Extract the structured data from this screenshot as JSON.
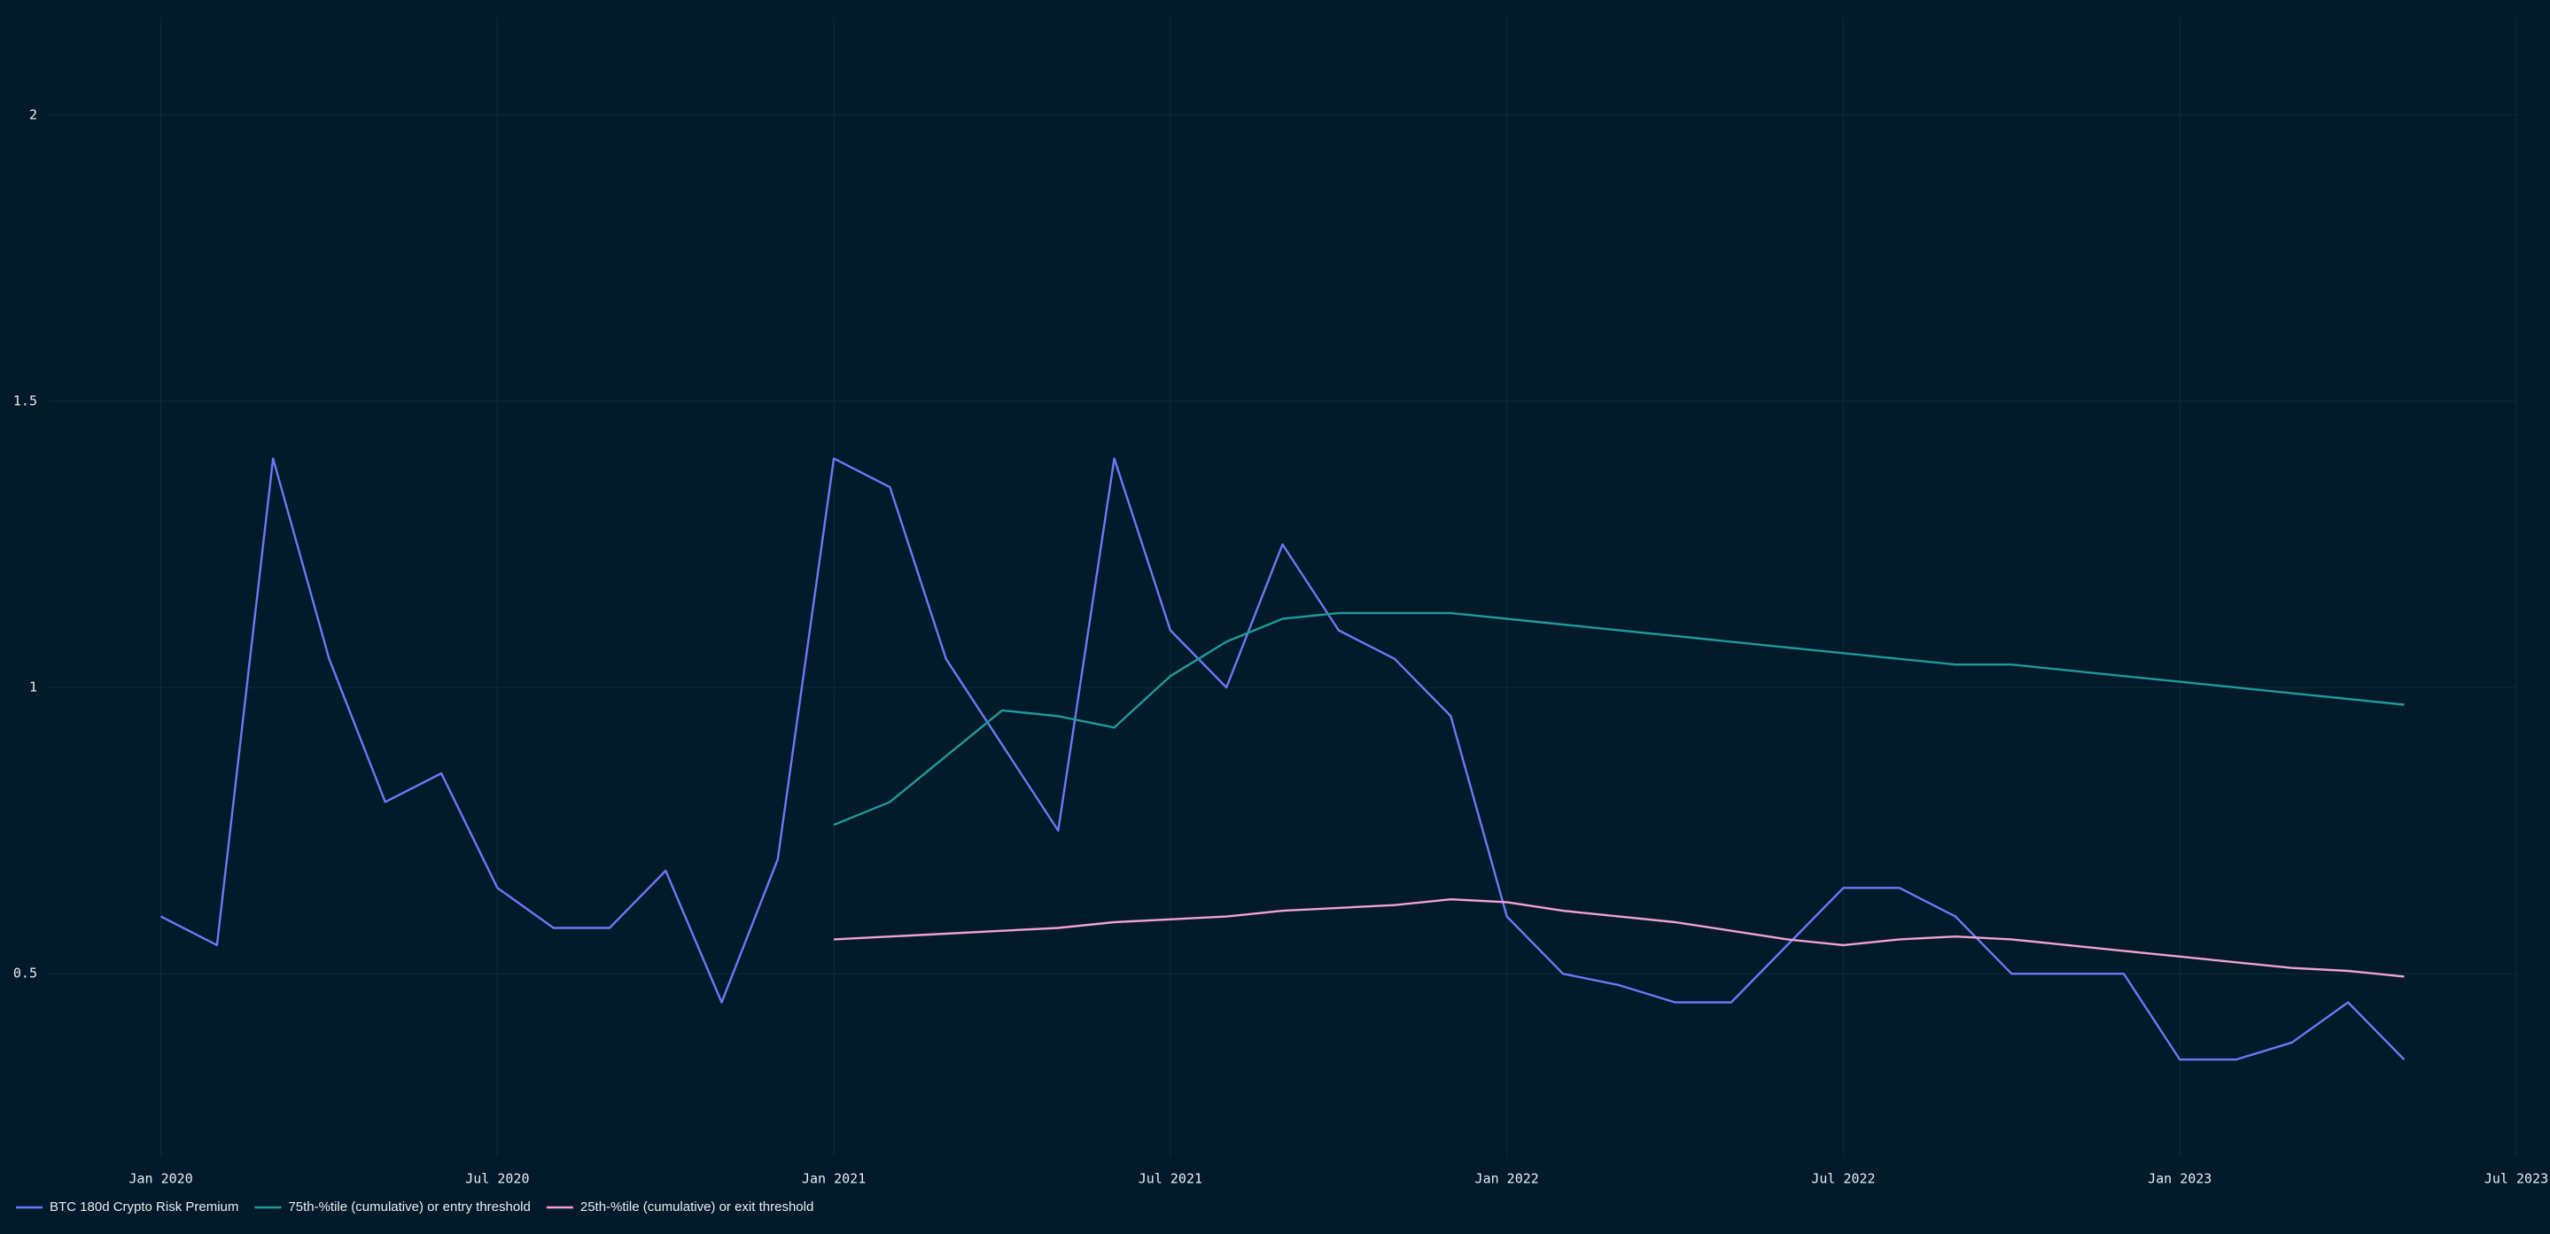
{
  "chart_data": {
    "type": "line",
    "x": [
      "2020-01",
      "2020-02",
      "2020-03",
      "2020-04",
      "2020-05",
      "2020-06",
      "2020-07",
      "2020-08",
      "2020-09",
      "2020-10",
      "2020-11",
      "2020-12",
      "2021-01",
      "2021-02",
      "2021-03",
      "2021-04",
      "2021-05",
      "2021-06",
      "2021-07",
      "2021-08",
      "2021-09",
      "2021-10",
      "2021-11",
      "2021-12",
      "2022-01",
      "2022-02",
      "2022-03",
      "2022-04",
      "2022-05",
      "2022-06",
      "2022-07",
      "2022-08",
      "2022-09",
      "2022-10",
      "2022-11",
      "2022-12",
      "2023-01",
      "2023-02",
      "2023-03",
      "2023-04",
      "2023-05"
    ],
    "series": [
      {
        "name": "BTC 180d Crypto Risk Premium",
        "color": "#6b7af5",
        "values": [
          0.6,
          0.55,
          1.4,
          1.05,
          0.8,
          0.85,
          0.65,
          0.58,
          0.58,
          0.68,
          0.45,
          0.7,
          1.4,
          1.35,
          1.05,
          0.9,
          0.75,
          1.4,
          1.1,
          1.0,
          1.25,
          1.1,
          1.05,
          0.95,
          0.6,
          0.5,
          0.48,
          0.45,
          0.45,
          0.55,
          0.65,
          0.65,
          0.6,
          0.5,
          0.5,
          0.5,
          0.35,
          0.35,
          0.38,
          0.45,
          0.35
        ]
      },
      {
        "name": "75th-%tile (cumulative) or entry threshold",
        "color": "#1f9a96",
        "values": [
          null,
          null,
          null,
          null,
          null,
          null,
          null,
          null,
          null,
          null,
          null,
          null,
          0.76,
          0.8,
          0.88,
          0.96,
          0.95,
          0.93,
          1.02,
          1.08,
          1.12,
          1.13,
          1.13,
          1.13,
          1.12,
          1.11,
          1.1,
          1.09,
          1.08,
          1.07,
          1.06,
          1.05,
          1.04,
          1.04,
          1.03,
          1.02,
          1.01,
          1.0,
          0.99,
          0.98,
          0.97
        ]
      },
      {
        "name": "25th-%tile (cumulative) or exit threshold",
        "color": "#f0a3d3",
        "values": [
          null,
          null,
          null,
          null,
          null,
          null,
          null,
          null,
          null,
          null,
          null,
          null,
          0.56,
          0.565,
          0.57,
          0.575,
          0.58,
          0.59,
          0.595,
          0.6,
          0.61,
          0.615,
          0.62,
          0.63,
          0.625,
          0.61,
          0.6,
          0.59,
          0.575,
          0.56,
          0.55,
          0.56,
          0.565,
          0.56,
          0.55,
          0.54,
          0.53,
          0.52,
          0.51,
          0.505,
          0.495
        ]
      }
    ],
    "xlim": [
      "2019-11",
      "2023-07"
    ],
    "xticks": [
      {
        "value": "2020-01",
        "label": "Jan 2020"
      },
      {
        "value": "2020-07",
        "label": "Jul 2020"
      },
      {
        "value": "2021-01",
        "label": "Jan 2021"
      },
      {
        "value": "2021-07",
        "label": "Jul 2021"
      },
      {
        "value": "2022-01",
        "label": "Jan 2022"
      },
      {
        "value": "2022-07",
        "label": "Jul 2022"
      },
      {
        "value": "2023-01",
        "label": "Jan 2023"
      },
      {
        "value": "2023-07",
        "label": "Jul 2023"
      }
    ],
    "ylim": [
      0.18,
      2.17
    ],
    "yticks": [
      0.5,
      1,
      1.5,
      2
    ],
    "grid": true,
    "legend": "bottom-left"
  }
}
